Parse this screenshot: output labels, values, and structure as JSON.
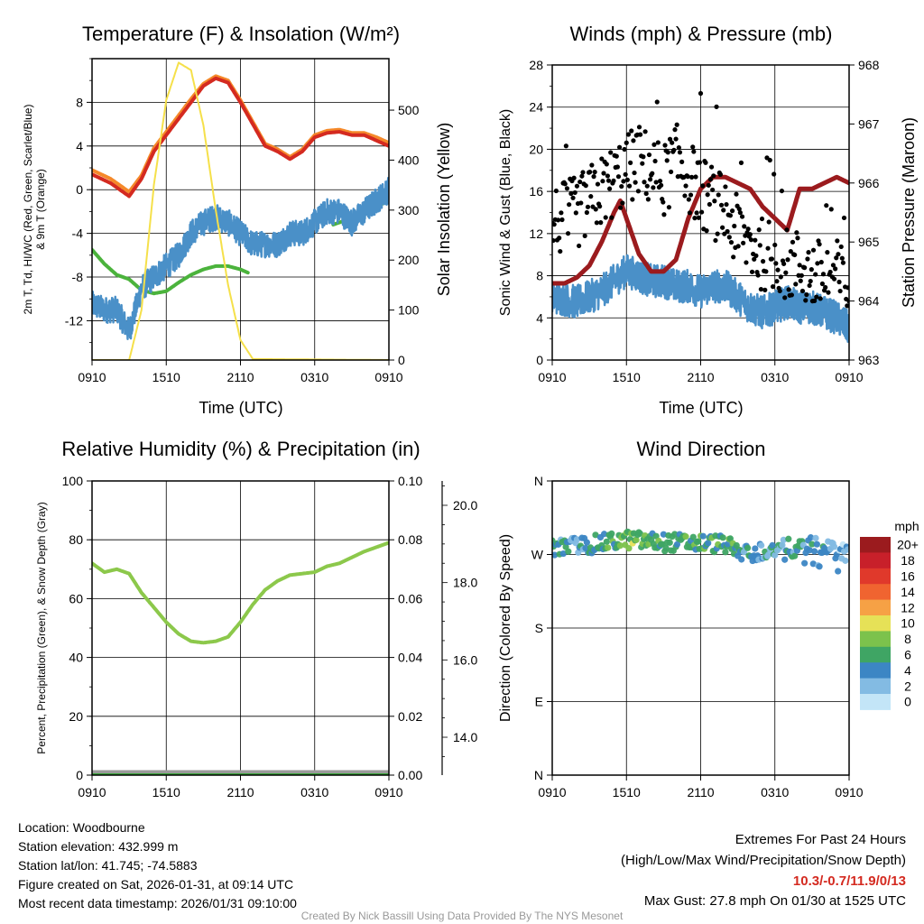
{
  "chart_data": [
    {
      "type": "line",
      "title": "Temperature (F) & Insolation (W/m²)",
      "xlabel": "Time (UTC)",
      "ylabel_lines": [
        "2m T, Td, HI/WC (Red, Green, Scarlet/Blue)",
        "& 9m T (Orange)"
      ],
      "ylabel_right": "Solar Insolation (Yellow)",
      "x_ticks": [
        "0910",
        "1510",
        "2110",
        "0310",
        "0910"
      ],
      "x_range_hours": [
        0,
        24
      ],
      "y_ticks": [
        "-12",
        "-8",
        "-4",
        "0",
        "4",
        "8"
      ],
      "ylim": [
        -15.6,
        12
      ],
      "y_right_ticks": [
        "0",
        "100",
        "200",
        "300",
        "400",
        "500"
      ],
      "ylim_right": [
        0,
        603
      ],
      "series": [
        {
          "name": "9m T",
          "color": "#f5892a",
          "axis": "left",
          "points": [
            [
              0,
              1.8
            ],
            [
              1.5,
              1
            ],
            [
              3,
              -0.2
            ],
            [
              4,
              1.3
            ],
            [
              5,
              3.8
            ],
            [
              6,
              5.3
            ],
            [
              7,
              6.8
            ],
            [
              8,
              8.3
            ],
            [
              9,
              9.7
            ],
            [
              10,
              10.4
            ],
            [
              11,
              10
            ],
            [
              12,
              8.2
            ],
            [
              13,
              6.2
            ],
            [
              14,
              4.2
            ],
            [
              15,
              3.7
            ],
            [
              16,
              3
            ],
            [
              17,
              3.7
            ],
            [
              18,
              5
            ],
            [
              19,
              5.4
            ],
            [
              20,
              5.5
            ],
            [
              21,
              5.2
            ],
            [
              22,
              5.2
            ],
            [
              23,
              4.8
            ],
            [
              24,
              4.3
            ]
          ]
        },
        {
          "name": "2m T",
          "color": "#d42a20",
          "axis": "left",
          "points": [
            [
              0,
              1.4
            ],
            [
              1.5,
              0.6
            ],
            [
              3,
              -0.6
            ],
            [
              4,
              1
            ],
            [
              5,
              3.5
            ],
            [
              6,
              5
            ],
            [
              7,
              6.5
            ],
            [
              8,
              8
            ],
            [
              9,
              9.5
            ],
            [
              10,
              10.2
            ],
            [
              11,
              9.8
            ],
            [
              12,
              8
            ],
            [
              13,
              6
            ],
            [
              14,
              4
            ],
            [
              15,
              3.5
            ],
            [
              16,
              2.8
            ],
            [
              17,
              3.5
            ],
            [
              18,
              4.8
            ],
            [
              19,
              5.2
            ],
            [
              20,
              5.3
            ],
            [
              21,
              5
            ],
            [
              22,
              5
            ],
            [
              23,
              4.5
            ],
            [
              24,
              4
            ]
          ]
        },
        {
          "name": "Td",
          "color": "#4bb33c",
          "axis": "left",
          "points": [
            [
              0,
              -5.5
            ],
            [
              1,
              -6.8
            ],
            [
              2,
              -7.8
            ],
            [
              3,
              -8.2
            ],
            [
              4,
              -9.2
            ],
            [
              5,
              -9.5
            ],
            [
              6,
              -9.3
            ],
            [
              7,
              -8.5
            ],
            [
              8,
              -7.8
            ],
            [
              9,
              -7.3
            ],
            [
              10,
              -7
            ],
            [
              11,
              -7
            ],
            [
              12,
              -7.3
            ],
            [
              12.6,
              -7.6
            ]
          ]
        },
        {
          "name": "Td (late)",
          "color": "#4bb33c",
          "axis": "left",
          "points": [
            [
              19.5,
              -3.2
            ],
            [
              21,
              -2.6
            ],
            [
              22.5,
              -1.8
            ],
            [
              24,
              -1
            ]
          ]
        },
        {
          "name": "WC",
          "color": "#4a90c8",
          "axis": "left",
          "noise": 1.2,
          "points": [
            [
              0,
              -10.5
            ],
            [
              1,
              -11
            ],
            [
              2,
              -11
            ],
            [
              3,
              -13
            ],
            [
              3.5,
              -11
            ],
            [
              4,
              -9
            ],
            [
              5,
              -8
            ],
            [
              6,
              -7
            ],
            [
              7,
              -6
            ],
            [
              8,
              -4
            ],
            [
              9,
              -3
            ],
            [
              10,
              -2.5
            ],
            [
              11,
              -3
            ],
            [
              12,
              -4
            ],
            [
              13,
              -5
            ],
            [
              14,
              -5
            ],
            [
              15,
              -5
            ],
            [
              16,
              -4
            ],
            [
              17,
              -4
            ],
            [
              18,
              -3
            ],
            [
              19,
              -2
            ],
            [
              20,
              -2
            ],
            [
              21,
              -3
            ],
            [
              22,
              -2
            ],
            [
              23,
              -1
            ],
            [
              24,
              0
            ]
          ]
        },
        {
          "name": "Solar Insolation",
          "color": "#f5e04a",
          "axis": "right",
          "points": [
            [
              0,
              0
            ],
            [
              3,
              0
            ],
            [
              4,
              100
            ],
            [
              5,
              350
            ],
            [
              6,
              520
            ],
            [
              7,
              595
            ],
            [
              8,
              580
            ],
            [
              9,
              470
            ],
            [
              10,
              300
            ],
            [
              11,
              150
            ],
            [
              12,
              40
            ],
            [
              13,
              2
            ],
            [
              24,
              0
            ]
          ]
        }
      ]
    },
    {
      "type": "line",
      "title": "Winds (mph) & Pressure (mb)",
      "xlabel": "Time (UTC)",
      "ylabel_lines": [
        "Sonic Wind & Gust (Blue, Black)"
      ],
      "ylabel_right": "Station Pressure (Maroon)",
      "x_ticks": [
        "0910",
        "1510",
        "2110",
        "0310",
        "0910"
      ],
      "x_range_hours": [
        0,
        24
      ],
      "y_ticks": [
        "0",
        "4",
        "8",
        "12",
        "16",
        "20",
        "24",
        "28"
      ],
      "ylim": [
        0,
        28
      ],
      "y_right_ticks": [
        "963",
        "964",
        "965",
        "966",
        "967",
        "968"
      ],
      "ylim_right": [
        963,
        968
      ],
      "series": [
        {
          "name": "Sonic Wind",
          "color": "#4a90c8",
          "axis": "left",
          "noise": 1.6,
          "points": [
            [
              0,
              6
            ],
            [
              2,
              5.5
            ],
            [
              4,
              6.5
            ],
            [
              5,
              7.5
            ],
            [
              6,
              8.5
            ],
            [
              7,
              8
            ],
            [
              8,
              7.5
            ],
            [
              9,
              7.5
            ],
            [
              10,
              7
            ],
            [
              11,
              7
            ],
            [
              12,
              6.5
            ],
            [
              13,
              7
            ],
            [
              14,
              7
            ],
            [
              15,
              6
            ],
            [
              16,
              5
            ],
            [
              17,
              4.5
            ],
            [
              18,
              5
            ],
            [
              19,
              5.5
            ],
            [
              20,
              5
            ],
            [
              21,
              5
            ],
            [
              22,
              4.5
            ],
            [
              23,
              4
            ],
            [
              24,
              3
            ]
          ]
        },
        {
          "name": "Station Pressure",
          "color": "#9b1b1e",
          "axis": "right",
          "points": [
            [
              0,
              964.3
            ],
            [
              1,
              964.3
            ],
            [
              2,
              964.4
            ],
            [
              3,
              964.6
            ],
            [
              4,
              965
            ],
            [
              5,
              965.5
            ],
            [
              5.5,
              965.7
            ],
            [
              6,
              965.4
            ],
            [
              7,
              964.8
            ],
            [
              8,
              964.5
            ],
            [
              9,
              964.5
            ],
            [
              10,
              964.7
            ],
            [
              11,
              965.4
            ],
            [
              12,
              965.9
            ],
            [
              13,
              966.1
            ],
            [
              14,
              966.1
            ],
            [
              15,
              966
            ],
            [
              16,
              965.9
            ],
            [
              17,
              965.6
            ],
            [
              18,
              965.4
            ],
            [
              19,
              965.2
            ],
            [
              20,
              965.9
            ],
            [
              21,
              965.9
            ],
            [
              22,
              966
            ],
            [
              23,
              966.1
            ],
            [
              24,
              966
            ]
          ]
        },
        {
          "name": "Gust",
          "color": "#000000",
          "axis": "left",
          "kind": "scatter",
          "spread": 3.5,
          "points": [
            [
              0,
              13
            ],
            [
              2,
              14
            ],
            [
              3,
              15
            ],
            [
              4,
              16
            ],
            [
              5,
              17
            ],
            [
              6,
              18
            ],
            [
              7,
              19
            ],
            [
              8,
              18
            ],
            [
              9,
              17
            ],
            [
              10,
              19
            ],
            [
              11,
              17.5
            ],
            [
              12,
              16
            ],
            [
              13,
              15
            ],
            [
              14,
              14
            ],
            [
              15,
              12
            ],
            [
              16,
              11
            ],
            [
              17,
              10
            ],
            [
              18,
              10
            ],
            [
              19,
              9
            ],
            [
              20,
              9
            ],
            [
              21,
              8
            ],
            [
              22,
              8
            ],
            [
              23,
              8
            ],
            [
              24,
              7
            ]
          ]
        }
      ]
    },
    {
      "type": "line",
      "title": "Relative Humidity (%) & Precipitation (in)",
      "xlabel": "",
      "ylabel_lines": [
        "Percent, Precipitation (Green), & Snow Depth (Gray)"
      ],
      "x_ticks": [
        "0910",
        "1510",
        "2110",
        "0310",
        "0910"
      ],
      "x_range_hours": [
        0,
        24
      ],
      "y_ticks": [
        "0",
        "20",
        "40",
        "60",
        "80",
        "100"
      ],
      "ylim": [
        0,
        100
      ],
      "y_right_ticks": [
        "0.00",
        "0.02",
        "0.04",
        "0.06",
        "0.08",
        "0.10"
      ],
      "ylim_right": [
        0,
        0.1
      ],
      "y_snow_ticks": [
        "14.0",
        "16.0",
        "18.0",
        "20.0"
      ],
      "ylim_snow": [
        13.02,
        20.63
      ],
      "series": [
        {
          "name": "Snow Depth",
          "color": "#9a9a9a",
          "axis": "right",
          "points": [
            [
              0,
              0
            ],
            [
              24,
              0
            ]
          ]
        },
        {
          "name": "Precipitation",
          "color": "#3aa53a",
          "axis": "right",
          "points": [
            [
              0,
              0
            ],
            [
              24,
              0
            ]
          ]
        },
        {
          "name": "Relative Humidity",
          "color": "#8cc84b",
          "axis": "left",
          "points": [
            [
              0,
              72
            ],
            [
              1,
              69
            ],
            [
              2,
              70
            ],
            [
              3,
              68.5
            ],
            [
              4,
              62
            ],
            [
              5,
              57
            ],
            [
              6,
              52
            ],
            [
              7,
              48
            ],
            [
              8,
              45.5
            ],
            [
              9,
              45
            ],
            [
              10,
              45.5
            ],
            [
              11,
              47
            ],
            [
              12,
              52
            ],
            [
              13,
              58
            ],
            [
              14,
              63
            ],
            [
              15,
              66
            ],
            [
              16,
              68
            ],
            [
              17,
              68.5
            ],
            [
              18,
              69
            ],
            [
              19,
              71
            ],
            [
              20,
              72
            ],
            [
              21,
              74
            ],
            [
              22,
              76
            ],
            [
              23,
              77.5
            ],
            [
              24,
              79
            ]
          ]
        }
      ]
    },
    {
      "type": "scatter",
      "title": "Wind Direction",
      "xlabel": "",
      "ylabel_lines": [
        "Direction (Colored By Speed)"
      ],
      "x_ticks": [
        "0910",
        "1510",
        "2110",
        "0310",
        "0910"
      ],
      "x_range_hours": [
        0,
        24
      ],
      "y_ticks": [
        "N",
        "E",
        "S",
        "W",
        "N"
      ],
      "ylim": [
        0,
        360
      ],
      "direction_trend": [
        [
          0,
          278
        ],
        [
          3,
          282
        ],
        [
          6,
          288
        ],
        [
          9,
          285
        ],
        [
          12,
          284
        ],
        [
          14,
          283
        ],
        [
          15,
          272
        ],
        [
          17,
          274
        ],
        [
          19,
          278
        ],
        [
          21,
          280
        ],
        [
          24,
          272
        ]
      ],
      "colorbar": {
        "title": "mph",
        "labels": [
          "20+",
          "18",
          "16",
          "14",
          "12",
          "10",
          "8",
          "6",
          "4",
          "2",
          "0"
        ],
        "colors": [
          "#9b1b1e",
          "#c8202a",
          "#e0392b",
          "#f06430",
          "#f6a145",
          "#e6e157",
          "#7cc24c",
          "#3fa564",
          "#3c86c4",
          "#83bbe3",
          "#c3e5f7"
        ]
      }
    }
  ],
  "footer": {
    "left": [
      "Location: Woodbourne",
      "Station elevation: 432.999 m",
      "Station lat/lon: 41.745; -74.5883",
      "Figure created on Sat, 2026-01-31, at 09:14 UTC",
      "Most recent data timestamp: 2026/01/31 09:10:00"
    ],
    "extremes_title": "Extremes For Past 24 Hours",
    "extremes_subtitle": "(High/Low/Max Wind/Precipitation/Snow Depth)",
    "extremes_values": "10.3/-0.7/11.9/0/13",
    "max_gust": "Max Gust: 27.8 mph On 01/30 at 1525 UTC",
    "credit": "Created By Nick Bassill Using Data Provided By The NYS Mesonet"
  }
}
